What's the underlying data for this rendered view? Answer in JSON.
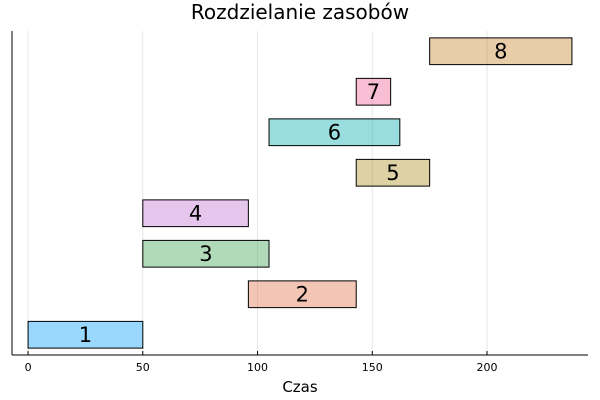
{
  "chart_data": {
    "type": "bar",
    "orientation": "horizontal",
    "title": "Rozdzielanie zasobów",
    "xlabel": "Czas",
    "ylabel": "",
    "xlim": [
      -7,
      244
    ],
    "x_ticks": [
      0,
      50,
      100,
      150,
      200
    ],
    "grid": "x",
    "legend": "none",
    "tasks": [
      {
        "label": "1",
        "start": 0,
        "end": 50,
        "color": "#009af9"
      },
      {
        "label": "2",
        "start": 96,
        "end": 143,
        "color": "#e26f46"
      },
      {
        "label": "3",
        "start": 50,
        "end": 105,
        "color": "#3da44d"
      },
      {
        "label": "4",
        "start": 50,
        "end": 96,
        "color": "#c271d2"
      },
      {
        "label": "5",
        "start": 143,
        "end": 175,
        "color": "#ac8d18"
      },
      {
        "label": "6",
        "start": 105,
        "end": 162,
        "color": "#00a9ad"
      },
      {
        "label": "7",
        "start": 143,
        "end": 158,
        "color": "#ed5e93"
      },
      {
        "label": "8",
        "start": 175,
        "end": 237,
        "color": "#c68125"
      }
    ]
  }
}
